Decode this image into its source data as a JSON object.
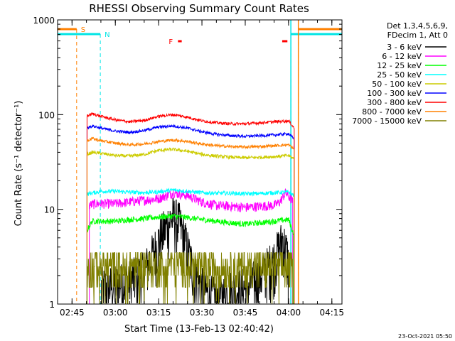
{
  "chart_data": {
    "type": "line",
    "title": "RHESSI Observing Summary Count Rates",
    "xlabel": "Start Time (13-Feb-13 02:40:42)",
    "ylabel": "Count Rate (s⁻¹ detector⁻¹)",
    "y_scale": "log",
    "ylim": [
      1,
      1000
    ],
    "xlim_minutes": [
      160.0,
      258.5
    ],
    "x_ticks": [
      {
        "label": "02:45",
        "minute": 165
      },
      {
        "label": "03:00",
        "minute": 180
      },
      {
        "label": "03:15",
        "minute": 195
      },
      {
        "label": "03:30",
        "minute": 210
      },
      {
        "label": "03:45",
        "minute": 225
      },
      {
        "label": "04:00",
        "minute": 240
      },
      {
        "label": "04:15",
        "minute": 255
      }
    ],
    "y_ticks": [
      {
        "label": "1",
        "value": 1
      },
      {
        "label": "10",
        "value": 10
      },
      {
        "label": "100",
        "value": 100
      },
      {
        "label": "1000",
        "value": 1000
      }
    ],
    "legend_header": [
      "Det 1,3,4,5,6,9,",
      "FDecim 1, Att 0"
    ],
    "legend_placement": "right",
    "series": [
      {
        "name": "3 - 6 keV",
        "color": "#000000",
        "start": 175.2,
        "end": 240.0,
        "x": [
          175.2,
          180,
          185,
          190,
          192,
          194,
          196,
          198,
          200,
          202,
          204,
          206,
          208,
          210,
          212,
          214,
          216,
          218,
          220,
          225,
          230,
          235,
          238,
          240
        ],
        "y": [
          1.5,
          1.6,
          1.8,
          2.2,
          3.0,
          4.0,
          5.5,
          7.0,
          8.5,
          7.5,
          5.0,
          3.0,
          2.0,
          1.5,
          1.3,
          1.2,
          1.2,
          1.3,
          1.4,
          1.5,
          2.0,
          3.0,
          5.0,
          3.0
        ]
      },
      {
        "name": "6 - 12 keV",
        "color": "#ff00ff",
        "start": 171.0,
        "end": 241.5,
        "x": [
          171,
          173,
          175,
          180,
          185,
          190,
          195,
          200,
          205,
          210,
          215,
          220,
          225,
          230,
          235,
          237,
          239,
          241.5
        ],
        "y": [
          11.0,
          11.5,
          11.5,
          11.5,
          12.0,
          12.5,
          13.0,
          15.0,
          14.0,
          12.0,
          11.0,
          10.8,
          10.5,
          10.8,
          11.0,
          12.0,
          15.0,
          12.0
        ]
      },
      {
        "name": "12 - 25 keV",
        "color": "#00ff00",
        "start": 170.2,
        "end": 241.8,
        "x": [
          170.2,
          172,
          175,
          180,
          185,
          190,
          195,
          200,
          205,
          210,
          215,
          220,
          225,
          230,
          235,
          240,
          241.8
        ],
        "y": [
          6.0,
          7.5,
          7.5,
          7.5,
          7.8,
          8.0,
          8.3,
          8.5,
          8.2,
          7.8,
          7.5,
          7.2,
          7.0,
          7.2,
          7.5,
          7.8,
          5.5
        ]
      },
      {
        "name": "25 - 50 keV",
        "color": "#00ffff",
        "start": 170.2,
        "end": 242.0,
        "x": [
          170.2,
          175,
          180,
          185,
          190,
          195,
          200,
          205,
          210,
          215,
          220,
          225,
          230,
          235,
          240,
          242
        ],
        "y": [
          14.5,
          15.5,
          15.5,
          15.2,
          15.0,
          15.3,
          16.0,
          15.5,
          15.0,
          14.8,
          14.8,
          14.6,
          14.7,
          15.0,
          15.2,
          14.0
        ]
      },
      {
        "name": "50 - 100 keV",
        "color": "#cccc00",
        "start": 170.2,
        "end": 242.0,
        "x": [
          170.2,
          172,
          175,
          180,
          185,
          190,
          195,
          200,
          205,
          210,
          215,
          220,
          225,
          230,
          235,
          240,
          242
        ],
        "y": [
          38,
          40,
          39,
          37,
          36.5,
          38,
          42,
          43,
          41,
          38,
          36.5,
          35.5,
          35,
          35.5,
          36,
          37,
          34
        ]
      },
      {
        "name": "100 - 300 keV",
        "color": "#0000ff",
        "start": 170.2,
        "end": 242.0,
        "x": [
          170.2,
          172,
          175,
          180,
          185,
          190,
          195,
          200,
          205,
          210,
          215,
          220,
          225,
          230,
          235,
          240,
          242
        ],
        "y": [
          72,
          76,
          72,
          67,
          65,
          68,
          74,
          76,
          72,
          66,
          62,
          60,
          59,
          60,
          61,
          63,
          55
        ]
      },
      {
        "name": "300 - 800 keV",
        "color": "#ff0000",
        "start": 170.2,
        "end": 242.0,
        "x": [
          170.2,
          172,
          175,
          180,
          185,
          190,
          195,
          200,
          205,
          210,
          215,
          220,
          225,
          230,
          235,
          240,
          242
        ],
        "y": [
          97,
          102,
          96,
          88,
          84,
          87,
          96,
          100,
          94,
          86,
          82,
          80,
          80,
          82,
          84,
          86,
          72
        ]
      },
      {
        "name": "800 - 7000 keV",
        "color": "#ff8000",
        "start": 170.2,
        "end": 242.0,
        "x": [
          170.2,
          172,
          175,
          180,
          185,
          190,
          195,
          200,
          205,
          210,
          215,
          220,
          225,
          230,
          235,
          240,
          242
        ],
        "y": [
          53,
          56,
          53,
          50,
          48,
          49,
          52,
          54,
          52,
          49,
          47,
          46,
          45.5,
          46,
          47,
          48,
          43
        ]
      },
      {
        "name": "7000 - 15000 keV",
        "color": "#808000",
        "start": 170.2,
        "end": 241.5,
        "x": [
          170.2,
          175,
          180,
          185,
          190,
          195,
          200,
          205,
          210,
          215,
          220,
          225,
          230,
          235,
          240,
          241.5
        ],
        "y": [
          2.5,
          2.5,
          2.5,
          2.5,
          2.6,
          2.6,
          2.7,
          2.6,
          2.5,
          2.5,
          2.5,
          2.5,
          2.5,
          2.5,
          2.5,
          2.5
        ]
      }
    ],
    "annotations": {
      "saa_label": "S",
      "night_label": "N",
      "flare_label": "F",
      "saa_intervals": [
        [
          160.0,
          166.6
        ],
        [
          243.4,
          258.5
        ]
      ],
      "night_intervals": [
        [
          160.0,
          174.8
        ],
        [
          240.8,
          258.5
        ]
      ],
      "flare_marks": [
        [
          201.7,
          203.0
        ],
        [
          237.8,
          239.6
        ]
      ],
      "saa_dashed_at": [
        166.6,
        243.4
      ],
      "night_dashed_at": [
        174.8,
        240.8,
        258.5
      ]
    },
    "timestamp": "23-Oct-2021 05:50"
  }
}
